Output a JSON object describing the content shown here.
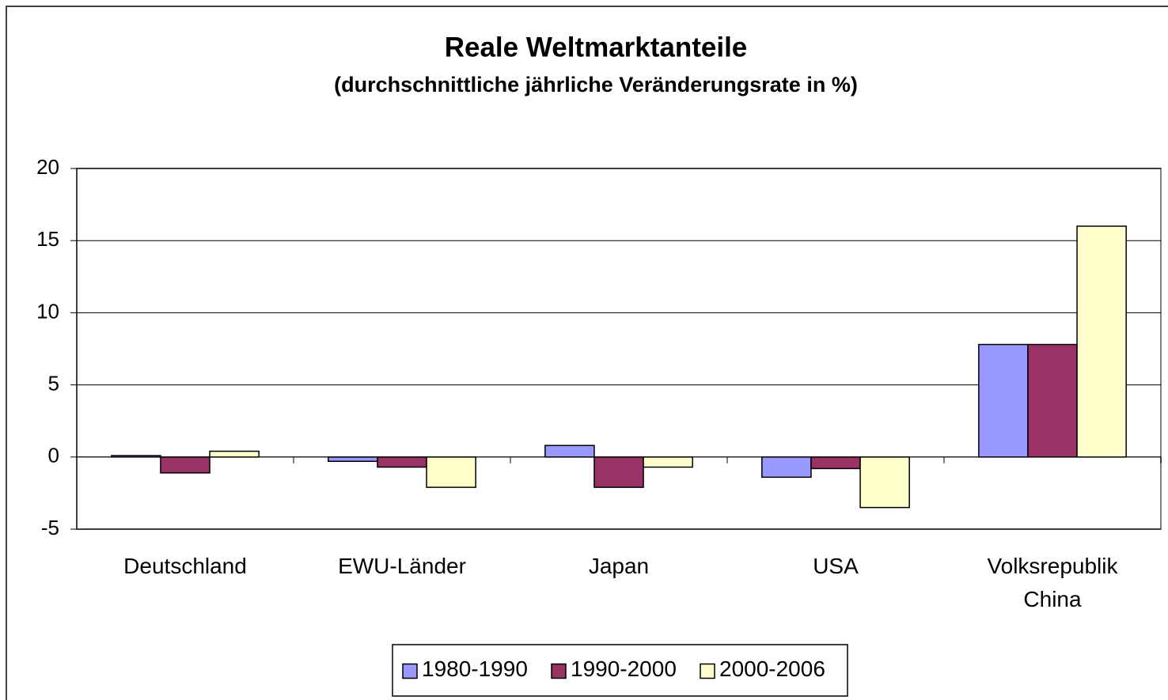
{
  "chart_data": {
    "type": "bar",
    "title": "Reale Weltmarktanteile",
    "subtitle": "(durchschnittliche jährliche Veränderungsrate in %)",
    "categories": [
      "Deutschland",
      "EWU-Länder",
      "Japan",
      "USA",
      "Volksrepublik China"
    ],
    "series": [
      {
        "name": "1980-1990",
        "color": "#9999ff",
        "values": [
          0.1,
          -0.3,
          0.8,
          -1.4,
          7.8
        ]
      },
      {
        "name": "1990-2000",
        "color": "#993366",
        "values": [
          -1.1,
          -0.7,
          -2.1,
          -0.8,
          7.8
        ]
      },
      {
        "name": "2000-2006",
        "color": "#ffffcc",
        "values": [
          0.4,
          -2.1,
          -0.7,
          -3.5,
          16
        ]
      }
    ],
    "ylim": [
      -5,
      20
    ],
    "yticks": [
      -5,
      0,
      5,
      10,
      15,
      20
    ],
    "grid": true,
    "legend": "bottom"
  }
}
